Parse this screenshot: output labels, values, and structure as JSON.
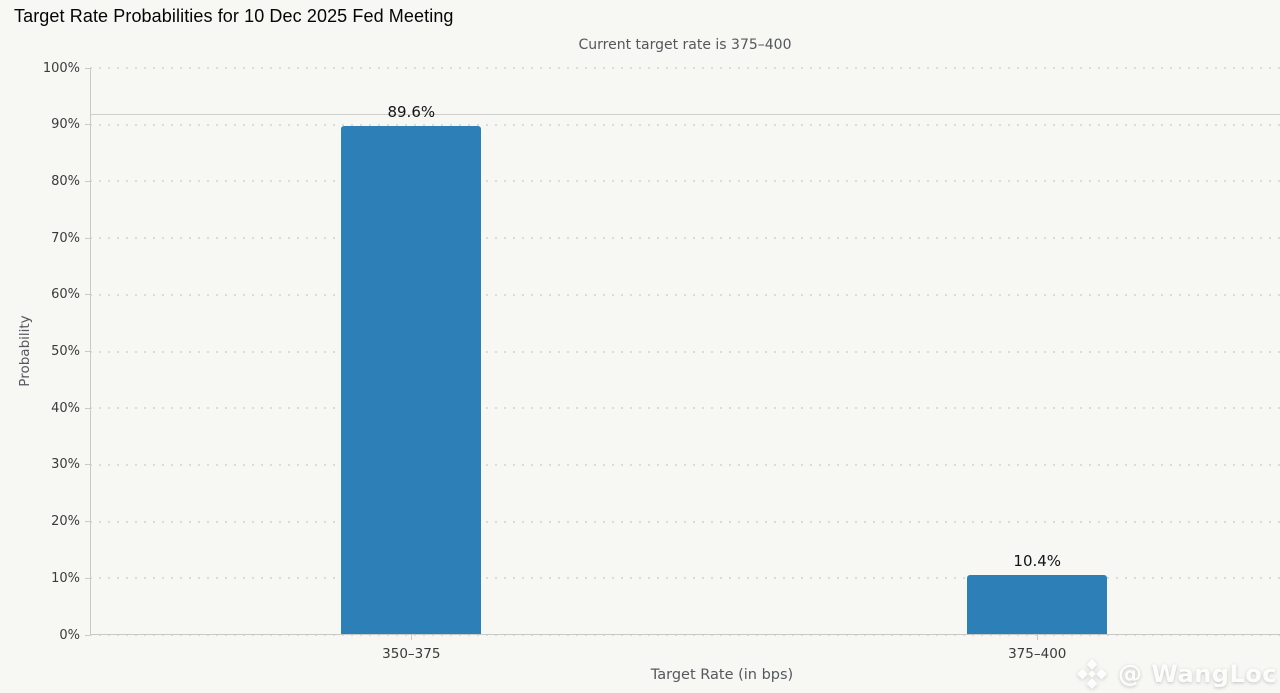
{
  "page": {
    "background_color": "#f7f7f3"
  },
  "chart_data": {
    "type": "bar",
    "title": "Target Rate Probabilities for 10 Dec 2025 Fed Meeting",
    "subtitle": "Current target rate is 375–400",
    "categories": [
      "350–375",
      "375–400"
    ],
    "values": [
      89.6,
      10.4
    ],
    "value_labels": [
      "89.6%",
      "10.4%"
    ],
    "xlabel": "Target Rate (in bps)",
    "ylabel": "Probability",
    "ylim": [
      0,
      100
    ],
    "ytick_step": 10,
    "ytick_labels": [
      "0%",
      "10%",
      "20%",
      "30%",
      "40%",
      "50%",
      "60%",
      "70%",
      "80%",
      "90%",
      "100%"
    ],
    "grid": "dotted horizontal gridlines at each 10%",
    "reference_line_y": 91.9,
    "legend": "none",
    "bar_color": "#2d7fb8",
    "grid_color": "#dcdcd5",
    "axis_line_color": "#c9c9c5"
  },
  "watermark": {
    "text": "@ WangLoc"
  }
}
